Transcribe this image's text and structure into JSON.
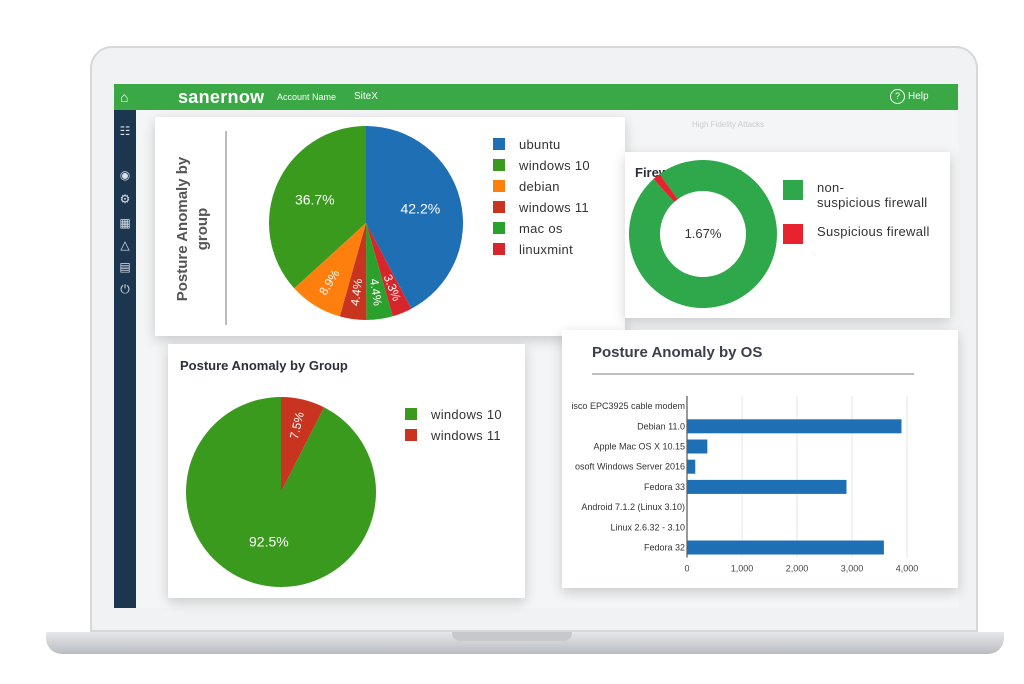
{
  "topbar": {
    "brand": "sanernow",
    "account": "Account Name",
    "site": "SiteX",
    "help": "Help",
    "help_glyph": "?"
  },
  "background": {
    "attacks_title": "High Fidelity Attacks"
  },
  "posture_group_top": {
    "title_lines": [
      "Posture Anomaly by",
      "group"
    ],
    "chart_data": {
      "type": "pie",
      "title": "Posture Anomaly by group",
      "slices": [
        {
          "label": "ubuntu",
          "value": 42.2,
          "display": "42.2%",
          "color": "#1f6fb4"
        },
        {
          "label": "linuxmint",
          "value": 3.3,
          "display": "3.3%",
          "color": "#d7262b"
        },
        {
          "label": "mac os",
          "value": 4.4,
          "display": "4.4%",
          "color": "#2ca02c"
        },
        {
          "label": "windows 11",
          "value": 4.4,
          "display": "4.4%",
          "color": "#c8341f"
        },
        {
          "label": "debian",
          "value": 8.9,
          "display": "8.9%",
          "color": "#ff7f0e"
        },
        {
          "label": "windows 10",
          "value": 36.7,
          "display": "36.7%",
          "color": "#3a9a1e"
        }
      ],
      "legend": [
        {
          "label": "ubuntu",
          "color": "#1f6fb4"
        },
        {
          "label": "windows 10",
          "color": "#3a9a1e"
        },
        {
          "label": "debian",
          "color": "#ff7f0e"
        },
        {
          "label": "windows 11",
          "color": "#c8341f"
        },
        {
          "label": "mac os",
          "color": "#2ca02c"
        },
        {
          "label": "linuxmint",
          "color": "#d7262b"
        }
      ],
      "legend_position": "right"
    }
  },
  "firewall": {
    "title": "Firewall Anomaly",
    "chart_data": {
      "type": "pie",
      "title": "Firewall Anomaly",
      "donut": true,
      "center_label": "1.67%",
      "slices": [
        {
          "label": "non-suspicious firewall",
          "value": 98.33,
          "color": "#2ea84a"
        },
        {
          "label": "Suspicious firewall",
          "value": 1.67,
          "color": "#e8222e"
        }
      ],
      "legend": [
        {
          "lines": [
            "non-",
            "suspicious firewall"
          ],
          "color": "#2ea84a"
        },
        {
          "lines": [
            "Suspicious firewall"
          ],
          "color": "#e8222e"
        }
      ],
      "legend_position": "right"
    }
  },
  "posture_group_bottom": {
    "title": "Posture Anomaly by Group",
    "chart_data": {
      "type": "pie",
      "title": "Posture Anomaly by Group",
      "slices": [
        {
          "label": "windows 11",
          "value": 7.5,
          "display": "7.5%",
          "color": "#c8341f"
        },
        {
          "label": "windows 10",
          "value": 92.5,
          "display": "92.5%",
          "color": "#3a9a1e"
        }
      ],
      "legend": [
        {
          "label": "windows 10",
          "color": "#3a9a1e"
        },
        {
          "label": "windows 11",
          "color": "#c8341f"
        }
      ],
      "legend_position": "right"
    }
  },
  "posture_os": {
    "title": "Posture Anomaly by OS",
    "chart_data": {
      "type": "bar",
      "orientation": "horizontal",
      "title": "Posture Anomaly by OS",
      "categories": [
        "isco EPC3925 cable modem",
        "Debian 11.0",
        "Apple Mac OS X 10.15",
        "osoft Windows Server 2016",
        "Fedora 33",
        "Android 7.1.2 (Linux 3.10)",
        "Linux 2.6.32 - 3.10",
        "Fedora 32"
      ],
      "values": [
        0,
        3900,
        370,
        150,
        2900,
        0,
        0,
        3580
      ],
      "xlim": [
        0,
        4000
      ],
      "xticks": [
        0,
        1000,
        2000,
        3000,
        4000
      ],
      "xtick_labels": [
        "0",
        "1,000",
        "2,000",
        "3,000",
        "4,000"
      ],
      "bar_color": "#1f6fb4",
      "grid": true
    }
  }
}
